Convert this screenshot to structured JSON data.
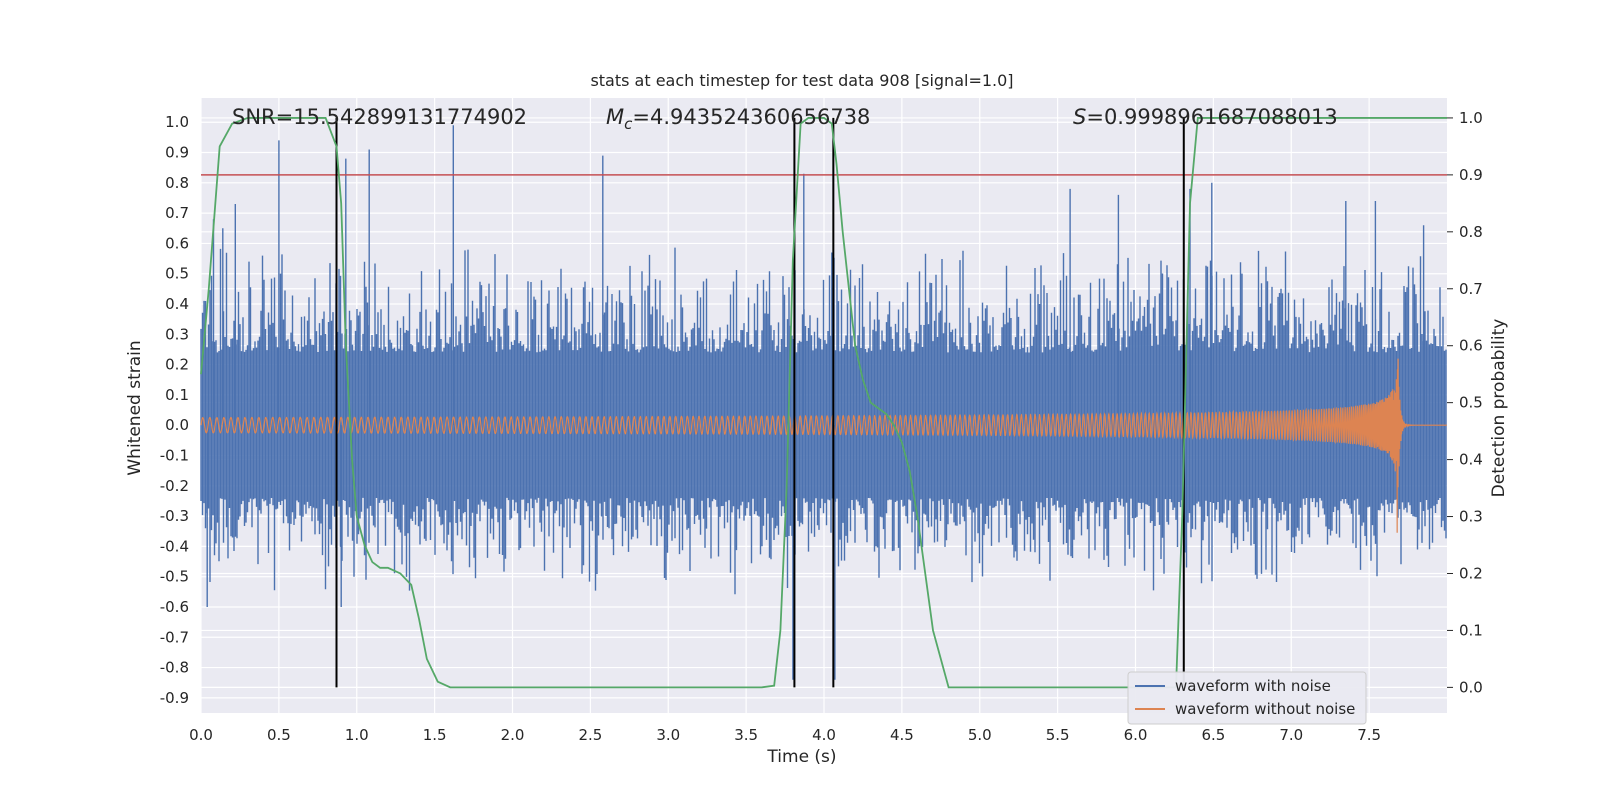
{
  "chart_data": {
    "type": "line",
    "title": "stats at each timestep for test data 908 [signal=1.0]",
    "xlabel": "Time (s)",
    "ylabel": "Whitened strain",
    "y2label": "Detection probability",
    "xlim": [
      0.0,
      8.0
    ],
    "ylim": [
      -0.95,
      1.08
    ],
    "y2lim": [
      -0.045,
      1.035
    ],
    "xticks": [
      "0.0",
      "0.5",
      "1.0",
      "1.5",
      "2.0",
      "2.5",
      "3.0",
      "3.5",
      "4.0",
      "4.5",
      "5.0",
      "5.5",
      "6.0",
      "6.5",
      "7.0",
      "7.5"
    ],
    "yticks": [
      "-0.9",
      "-0.8",
      "-0.7",
      "-0.6",
      "-0.5",
      "-0.4",
      "-0.3",
      "-0.2",
      "-0.1",
      "0.0",
      "0.1",
      "0.2",
      "0.3",
      "0.4",
      "0.5",
      "0.6",
      "0.7",
      "0.8",
      "0.9",
      "1.0"
    ],
    "y2ticks": [
      "0.0",
      "0.1",
      "0.2",
      "0.3",
      "0.4",
      "0.5",
      "0.6",
      "0.7",
      "0.8",
      "0.9",
      "1.0"
    ],
    "grid": true,
    "legend_position": "lower-right",
    "annotations": {
      "snr": "SNR=15.542899131774902",
      "mc_symbol": "M",
      "mc_sub": "c",
      "mc_value": "=4.943524360656738",
      "s_symbol": "S",
      "s_value": "=0.9998961687088013"
    },
    "series": [
      {
        "name": "waveform with noise",
        "color": "#4c72b0",
        "description_range": [
          -0.85,
          0.94
        ],
        "spikes": [
          [
            0.04,
            -0.6
          ],
          [
            0.08,
            0.68
          ],
          [
            0.14,
            0.65
          ],
          [
            0.22,
            0.73
          ],
          [
            0.5,
            0.94
          ],
          [
            0.87,
            0.66
          ],
          [
            0.9,
            -0.6
          ],
          [
            0.93,
            0.88
          ],
          [
            1.08,
            0.91
          ],
          [
            1.62,
            0.99
          ],
          [
            2.58,
            0.89
          ],
          [
            3.8,
            -0.84
          ],
          [
            3.87,
            0.83
          ],
          [
            4.05,
            0.57
          ],
          [
            4.07,
            -0.84
          ],
          [
            5.58,
            0.78
          ],
          [
            5.89,
            0.76
          ],
          [
            6.35,
            0.78
          ],
          [
            6.49,
            0.8
          ],
          [
            7.35,
            0.74
          ],
          [
            7.54,
            0.74
          ],
          [
            7.85,
            0.66
          ]
        ]
      },
      {
        "name": "waveform without noise",
        "color": "#dd8452",
        "merger_time": 7.68,
        "peak_amplitude": 0.36
      },
      {
        "name": "Detection probability",
        "color": "#55a868",
        "axis": "right",
        "x": [
          0.0,
          0.05,
          0.12,
          0.2,
          0.3,
          0.5,
          0.6,
          0.8,
          0.87,
          0.9,
          0.93,
          0.97,
          1.0,
          1.05,
          1.1,
          1.15,
          1.2,
          1.28,
          1.35,
          1.4,
          1.45,
          1.52,
          1.6,
          1.8,
          2.1,
          2.3,
          3.0,
          3.6,
          3.68,
          3.72,
          3.76,
          3.8,
          3.85,
          3.9,
          3.95,
          4.0,
          4.05,
          4.08,
          4.12,
          4.16,
          4.2,
          4.25,
          4.3,
          4.35,
          4.4,
          4.45,
          4.5,
          4.55,
          4.6,
          4.65,
          4.7,
          4.8,
          5.2,
          6.0,
          6.26,
          6.3,
          6.35,
          6.4,
          6.45,
          6.5,
          7.0,
          7.5,
          8.0
        ],
        "values": [
          0.55,
          0.7,
          0.95,
          0.99,
          1.0,
          1.0,
          1.0,
          1.0,
          0.95,
          0.85,
          0.6,
          0.4,
          0.3,
          0.25,
          0.22,
          0.21,
          0.21,
          0.2,
          0.18,
          0.12,
          0.05,
          0.01,
          0.0,
          0.0,
          0.0,
          0.0,
          0.0,
          0.0,
          0.003,
          0.1,
          0.35,
          0.75,
          0.99,
          1.0,
          1.0,
          1.0,
          0.99,
          0.92,
          0.8,
          0.7,
          0.6,
          0.54,
          0.5,
          0.49,
          0.48,
          0.46,
          0.43,
          0.38,
          0.3,
          0.2,
          0.1,
          0.0,
          0.0,
          0.0,
          0.0,
          0.3,
          0.85,
          1.0,
          1.0,
          1.0,
          1.0,
          1.0,
          1.0
        ]
      }
    ],
    "threshold": {
      "value": 0.9,
      "axis": "right",
      "color": "#c44e52"
    },
    "vertical_lines": [
      0.87,
      3.81,
      4.06,
      6.31
    ]
  }
}
